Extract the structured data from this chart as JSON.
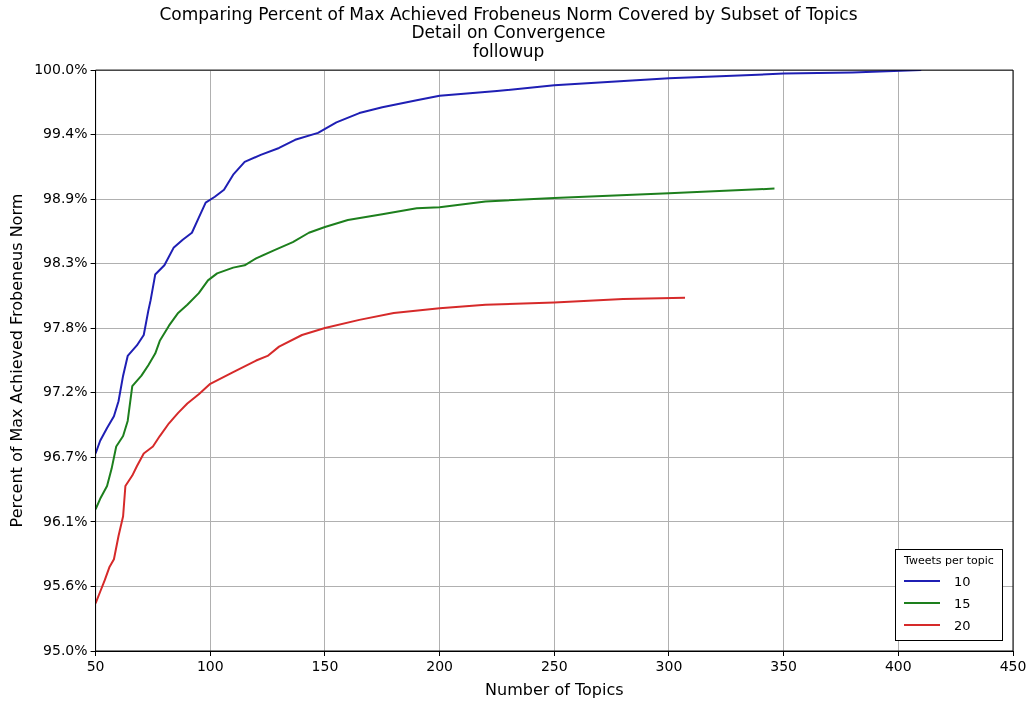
{
  "chart_data": {
    "type": "line",
    "title": "Comparing Percent of Max Achieved Frobeneus Norm Covered by Subset of Topics",
    "subtitle": "Detail on Convergence\nfollowup",
    "xlabel": "Number of Topics",
    "ylabel": "Percent of Max Achieved Frobeneus Norm",
    "legend_title": "Tweets per topic",
    "legend": "bottom right",
    "grid": true,
    "line_style": "solid",
    "xlim": [
      50,
      450
    ],
    "xticks": [
      50,
      100,
      150,
      200,
      250,
      300,
      350,
      400,
      450
    ],
    "ylim": [
      95,
      100
    ],
    "yticks": [
      {
        "value": 95,
        "label": "95.0%"
      },
      {
        "value": 95.5556,
        "label": "95.6%"
      },
      {
        "value": 96.1111,
        "label": "96.1%"
      },
      {
        "value": 96.6667,
        "label": "96.7%"
      },
      {
        "value": 97.2222,
        "label": "97.2%"
      },
      {
        "value": 97.7778,
        "label": "97.8%"
      },
      {
        "value": 98.3333,
        "label": "98.3%"
      },
      {
        "value": 98.8889,
        "label": "98.9%"
      },
      {
        "value": 99.4444,
        "label": "99.4%"
      },
      {
        "value": 100,
        "label": "100.0%"
      }
    ],
    "series": [
      {
        "name": "10",
        "color": "#1f1fb4",
        "x": [
          50,
          52,
          55,
          58,
          60,
          62,
          64,
          68,
          71,
          73,
          74,
          76,
          80,
          84,
          88,
          92,
          95,
          98,
          102,
          106,
          110,
          115,
          122,
          130,
          137,
          147,
          155,
          165,
          175,
          190,
          200,
          225,
          250,
          275,
          300,
          325,
          350,
          380,
          410
        ],
        "values": [
          96.7,
          96.81,
          96.92,
          97.02,
          97.15,
          97.37,
          97.54,
          97.63,
          97.72,
          97.93,
          98.02,
          98.24,
          98.32,
          98.47,
          98.54,
          98.6,
          98.73,
          98.86,
          98.91,
          98.97,
          99.1,
          99.21,
          99.27,
          99.33,
          99.4,
          99.46,
          99.55,
          99.63,
          99.68,
          99.74,
          99.78,
          99.82,
          99.87,
          99.9,
          99.93,
          99.95,
          99.97,
          99.98,
          100.0
        ]
      },
      {
        "name": "15",
        "color": "#1d7f1d",
        "x": [
          50,
          52,
          55,
          57,
          59,
          62,
          64,
          66,
          70,
          73,
          76,
          78,
          82,
          86,
          90,
          95,
          99,
          103,
          110,
          115,
          120,
          128,
          136,
          143,
          150,
          160,
          175,
          190,
          200,
          220,
          250,
          300,
          346
        ],
        "values": [
          96.22,
          96.31,
          96.42,
          96.57,
          96.76,
          96.85,
          96.98,
          97.28,
          97.37,
          97.46,
          97.56,
          97.67,
          97.8,
          97.91,
          97.98,
          98.08,
          98.19,
          98.25,
          98.3,
          98.32,
          98.38,
          98.45,
          98.52,
          98.6,
          98.65,
          98.71,
          98.76,
          98.81,
          98.82,
          98.87,
          98.9,
          98.94,
          98.98
        ]
      },
      {
        "name": "20",
        "color": "#d62a2a",
        "x": [
          50,
          52,
          54,
          56,
          58,
          60,
          62,
          63,
          66,
          68,
          71,
          75,
          78,
          82,
          86,
          90,
          95,
          100,
          110,
          120,
          125,
          130,
          140,
          150,
          165,
          180,
          200,
          220,
          250,
          280,
          307
        ],
        "values": [
          95.41,
          95.51,
          95.61,
          95.72,
          95.79,
          95.99,
          96.16,
          96.42,
          96.51,
          96.59,
          96.7,
          96.76,
          96.85,
          96.96,
          97.05,
          97.13,
          97.21,
          97.3,
          97.4,
          97.5,
          97.54,
          97.62,
          97.72,
          97.78,
          97.85,
          97.91,
          97.95,
          97.98,
          98.0,
          98.03,
          98.04
        ]
      }
    ]
  }
}
